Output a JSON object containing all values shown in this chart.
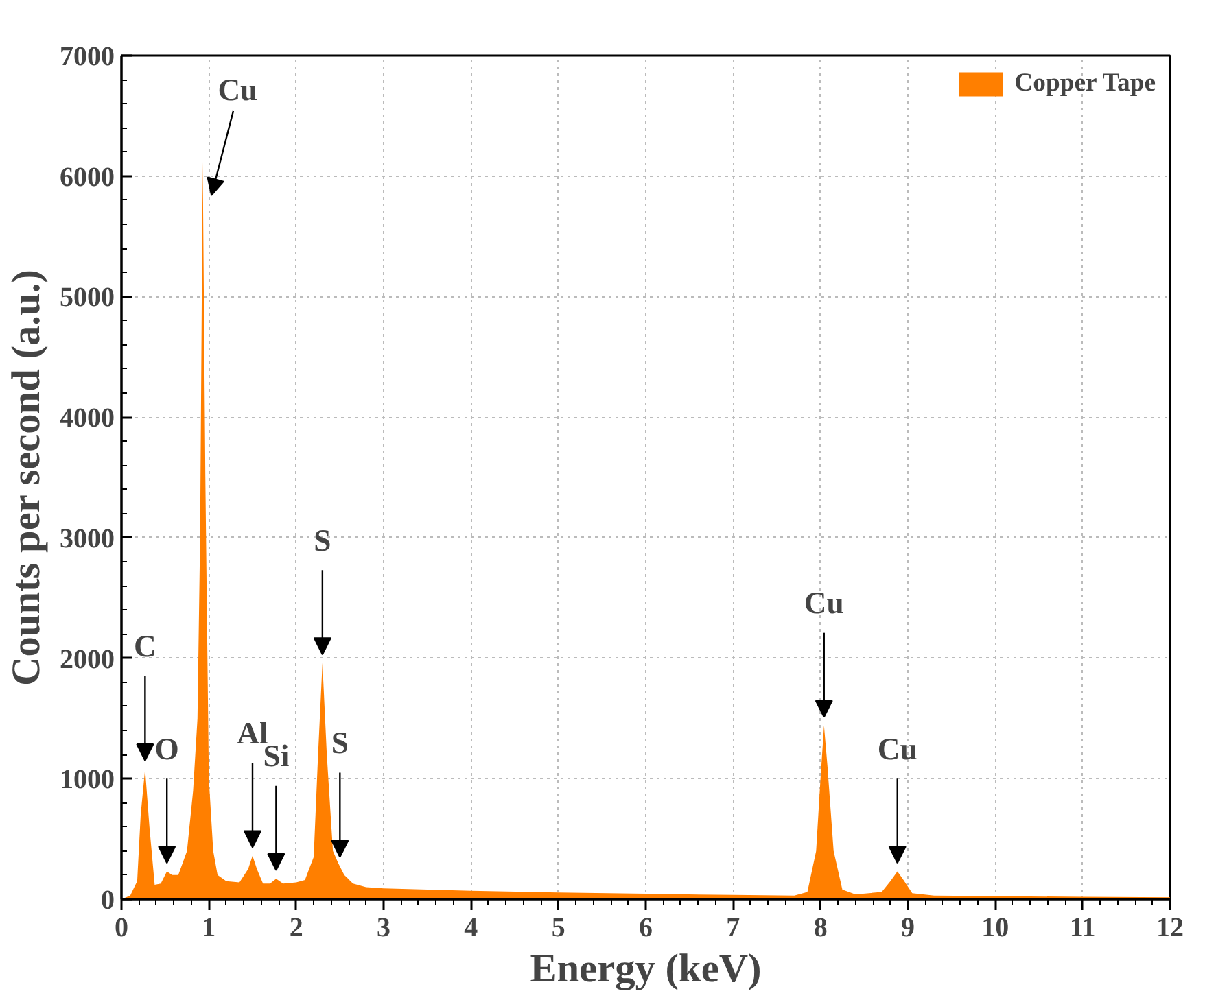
{
  "chart_data": {
    "type": "area",
    "xlabel": "Energy (keV)",
    "ylabel": "Counts per second (a.u.)",
    "xlim": [
      0,
      12
    ],
    "ylim": [
      0,
      7000
    ],
    "xticks": [
      0,
      1,
      2,
      3,
      4,
      5,
      6,
      7,
      8,
      9,
      10,
      11,
      12
    ],
    "yticks": [
      0,
      1000,
      2000,
      3000,
      4000,
      5000,
      6000,
      7000
    ],
    "grid": true,
    "legend": "top right",
    "series": [
      {
        "name": "Copper Tape",
        "color": "#ff7f00",
        "x": [
          0,
          0.1,
          0.18,
          0.22,
          0.27,
          0.32,
          0.38,
          0.45,
          0.52,
          0.58,
          0.65,
          0.75,
          0.82,
          0.87,
          0.9,
          0.93,
          0.96,
          1.0,
          1.05,
          1.1,
          1.2,
          1.35,
          1.45,
          1.5,
          1.55,
          1.62,
          1.7,
          1.77,
          1.85,
          2.0,
          2.1,
          2.2,
          2.25,
          2.3,
          2.35,
          2.42,
          2.48,
          2.55,
          2.65,
          2.8,
          3,
          3.5,
          4,
          5,
          6,
          7,
          7.7,
          7.85,
          7.95,
          8.0,
          8.04,
          8.08,
          8.15,
          8.25,
          8.4,
          8.7,
          8.8,
          8.88,
          8.95,
          9.05,
          9.3,
          10,
          11,
          12
        ],
        "values": [
          0,
          30,
          150,
          700,
          1080,
          600,
          120,
          130,
          230,
          200,
          200,
          400,
          900,
          1500,
          3000,
          6120,
          3500,
          1000,
          400,
          200,
          150,
          140,
          250,
          360,
          250,
          130,
          130,
          170,
          130,
          140,
          160,
          350,
          1200,
          1960,
          1200,
          400,
          300,
          200,
          130,
          100,
          90,
          80,
          70,
          55,
          45,
          35,
          30,
          60,
          400,
          1000,
          1440,
          1100,
          400,
          80,
          40,
          60,
          150,
          230,
          160,
          50,
          30,
          25,
          20,
          15
        ]
      }
    ],
    "annotations": [
      {
        "text": "Cu",
        "x": 0.93,
        "y": 6120
      },
      {
        "text": "C",
        "x": 0.27,
        "y": 1080
      },
      {
        "text": "O",
        "x": 0.52,
        "y": 230
      },
      {
        "text": "Al",
        "x": 1.5,
        "y": 360
      },
      {
        "text": "Si",
        "x": 1.77,
        "y": 170
      },
      {
        "text": "S",
        "x": 2.3,
        "y": 1960
      },
      {
        "text": "S",
        "x": 2.5,
        "y": 280
      },
      {
        "text": "Cu",
        "x": 8.04,
        "y": 1440
      },
      {
        "text": "Cu",
        "x": 8.88,
        "y": 230
      }
    ]
  }
}
